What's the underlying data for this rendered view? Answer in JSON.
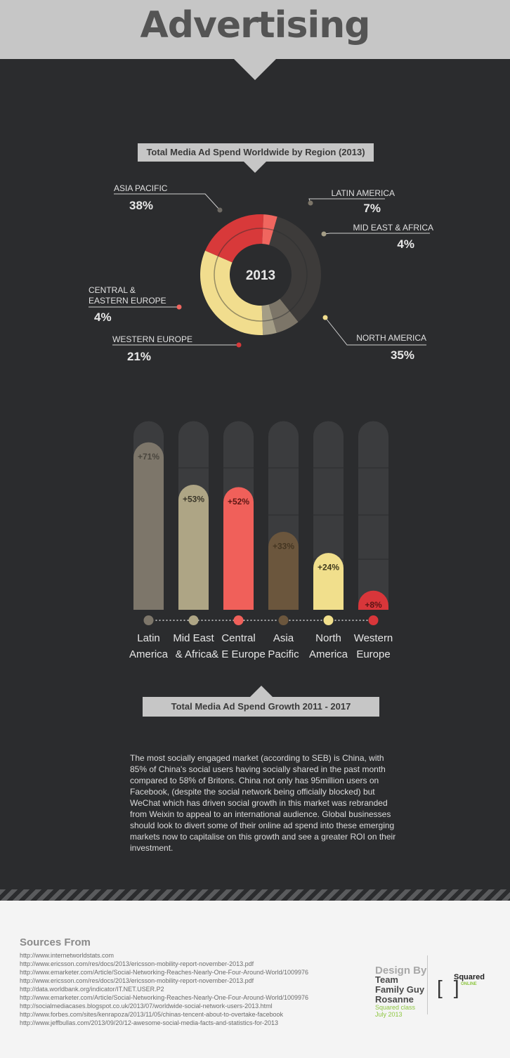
{
  "page": {
    "title": "Advertising"
  },
  "colors": {
    "dark_bg": "#2b2c2e",
    "light_bg": "#f4f4f4",
    "banner": "#c6c6c6",
    "accent_green": "#8dc63f"
  },
  "chart_data": [
    {
      "type": "pie",
      "title": "Total Media Ad Spend Worldwide by Region (2013)",
      "center_label": "2013",
      "slices": [
        {
          "label": "ASIA PACIFIC",
          "value": 38,
          "value_label": "38%",
          "color": "#3d3b3a"
        },
        {
          "label": "LATIN AMERICA",
          "value": 7,
          "value_label": "7%",
          "color": "#7c7568"
        },
        {
          "label": "MID EAST & AFRICA",
          "value": 4,
          "value_label": "4%",
          "color": "#a49d86"
        },
        {
          "label": "NORTH AMERICA",
          "value": 35,
          "value_label": "35%",
          "color": "#f1dd8e"
        },
        {
          "label": "WESTERN EUROPE",
          "value": 21,
          "value_label": "21%",
          "color": "#d8393a"
        },
        {
          "label": "CENTRAL & EASTERN EUROPE",
          "label_lines": [
            "CENTRAL &",
            "EASTERN EUROPE"
          ],
          "value": 4,
          "value_label": "4%",
          "color": "#f0665f"
        }
      ]
    },
    {
      "type": "bar",
      "title": "Total Media Ad Spend Growth 2011 - 2017",
      "categories": [
        "Latin America",
        "Mid East & Africa",
        "Central & E Europe",
        "Asia Pacific",
        "North America",
        "Western Europe"
      ],
      "category_lines": [
        [
          "Latin",
          "America"
        ],
        [
          "Mid East",
          "& Africa"
        ],
        [
          "Central",
          "& E Europe"
        ],
        [
          "Asia",
          "Pacific"
        ],
        [
          "North",
          "America"
        ],
        [
          "Western",
          "Europe"
        ]
      ],
      "values": [
        71,
        53,
        52,
        33,
        24,
        8
      ],
      "value_labels": [
        "+71%",
        "+53%",
        "+52%",
        "+33%",
        "+24%",
        "+8%"
      ],
      "colors": [
        "#7d766a",
        "#aea585",
        "#f0605a",
        "#6b563d",
        "#f1df8c",
        "#d8363a"
      ],
      "label_colors": [
        "#4a463e",
        "#3a3629",
        "#5c1714",
        "#453622",
        "#3f3a1c",
        "#5a1414"
      ],
      "ylim": [
        0,
        80
      ]
    }
  ],
  "narrative": "The most socially engaged market (according to SEB) is China, with 85% of China's social users having socially shared in the past month compared to 58% of Britons. China not only has 95million users on Facebook, (despite the social network being officially blocked) but WeChat which has driven social growth in this market was rebranded from Weixin to appeal to an international audience. Global businesses should look to divert some of their online ad spend into these emerging markets now to capitalise on this growth and see a greater ROI on their investment.",
  "sources": {
    "title": "Sources From",
    "items": [
      "http://www.internetworldstats.com",
      "http://www.ericsson.com/res/docs/2013/ericsson-mobility-report-november-2013.pdf",
      "http://www.emarketer.com/Article/Social-Networking-Reaches-Nearly-One-Four-Around-World/1009976",
      "http://www.ericsson.com/res/docs/2013/ericsson-mobility-report-november-2013.pdf",
      "http://data.worldbank.org/indicator/IT.NET.USER.P2",
      "http://www.emarketer.com/Article/Social-Networking-Reaches-Nearly-One-Four-Around-World/1009976",
      "http://socialmediacases.blogspot.co.uk/2013/07/worldwide-social-network-users-2013.html",
      "http://www.forbes.com/sites/kenrapoza/2013/11/05/chinas-tencent-about-to-overtake-facebook",
      "http://www.jeffbullas.com/2013/09/20/12-awesome-social-media-facts-and-statistics-for-2013"
    ]
  },
  "credits": {
    "design_by": "Design By",
    "team_lines": [
      "Team",
      "Family Guy",
      "Rosanne"
    ],
    "class_line": "Squared class",
    "date_line": "July 2013",
    "logo_name": "Squared",
    "logo_sub": "ONLINE"
  }
}
